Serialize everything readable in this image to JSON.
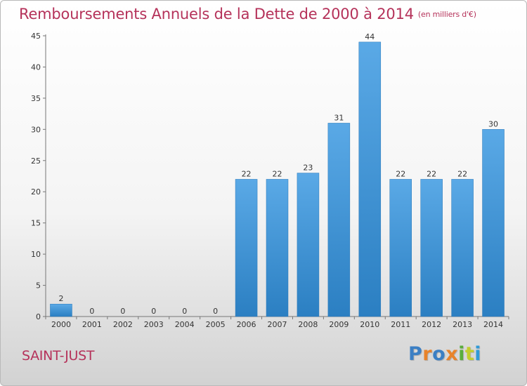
{
  "header": {
    "title": "Remboursements Annuels de la Dette de 2000 à 2014",
    "unit": "(en milliers d'€)"
  },
  "footer": {
    "place": "SAINT-JUST",
    "logo": {
      "letters": [
        "P",
        "r",
        "o",
        "x",
        "i",
        "t",
        "i"
      ],
      "colors": [
        "#3b7fc4",
        "#e8832a",
        "#3b7fc4",
        "#e8832a",
        "#5aae3c",
        "#c2ce2d",
        "#2f9ad7"
      ]
    }
  },
  "colors": {
    "bar": "#4d9fe0",
    "bar_dark": "#2b7fc2",
    "title": "#b5325a"
  },
  "chart_data": {
    "type": "bar",
    "title": "Remboursements Annuels de la Dette de 2000 à 2014",
    "subtitle": "(en milliers d'€)",
    "categories": [
      "2000",
      "2001",
      "2002",
      "2003",
      "2004",
      "2005",
      "2006",
      "2007",
      "2008",
      "2009",
      "2010",
      "2011",
      "2012",
      "2013",
      "2014"
    ],
    "values": [
      2,
      0,
      0,
      0,
      0,
      0,
      22,
      22,
      23,
      31,
      44,
      22,
      22,
      22,
      30
    ],
    "value_labels": [
      "2",
      "0",
      "0",
      "0",
      "0",
      "0",
      "22",
      "22",
      "23",
      "31",
      "44",
      "22",
      "22",
      "22",
      "30"
    ],
    "ylim": [
      0,
      45
    ],
    "yticks": [
      "0",
      "5",
      "10",
      "15",
      "20",
      "25",
      "30",
      "35",
      "40",
      "45"
    ],
    "grid": false
  }
}
